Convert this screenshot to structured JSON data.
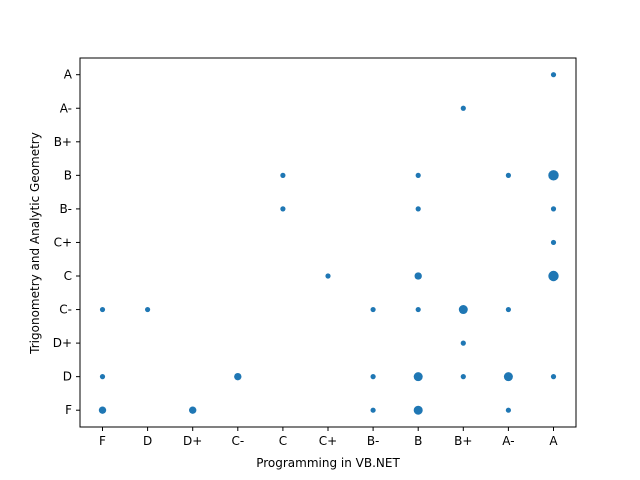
{
  "chart_data": {
    "type": "scatter",
    "xlabel": "Programming in VB.NET",
    "ylabel": "Trigonometry and Analytic Geometry",
    "x_categories": [
      "F",
      "D",
      "D+",
      "C-",
      "C",
      "C+",
      "B-",
      "B",
      "B+",
      "A-",
      "A"
    ],
    "y_categories": [
      "F",
      "D",
      "D+",
      "C-",
      "C",
      "C+",
      "B-",
      "B",
      "B+",
      "A-",
      "A"
    ],
    "grid": false,
    "legend": "none",
    "color": "#1f77b4",
    "points": [
      {
        "x": "F",
        "y": "F",
        "count": 2
      },
      {
        "x": "F",
        "y": "D",
        "count": 1
      },
      {
        "x": "F",
        "y": "C-",
        "count": 1
      },
      {
        "x": "D",
        "y": "C-",
        "count": 1
      },
      {
        "x": "D+",
        "y": "F",
        "count": 2
      },
      {
        "x": "C-",
        "y": "D",
        "count": 2
      },
      {
        "x": "C",
        "y": "B-",
        "count": 1
      },
      {
        "x": "C",
        "y": "B",
        "count": 1
      },
      {
        "x": "C+",
        "y": "C",
        "count": 1
      },
      {
        "x": "B-",
        "y": "F",
        "count": 1
      },
      {
        "x": "B-",
        "y": "D",
        "count": 1
      },
      {
        "x": "B-",
        "y": "C-",
        "count": 1
      },
      {
        "x": "B",
        "y": "F",
        "count": 3
      },
      {
        "x": "B",
        "y": "D",
        "count": 3
      },
      {
        "x": "B",
        "y": "C-",
        "count": 1
      },
      {
        "x": "B",
        "y": "C",
        "count": 2
      },
      {
        "x": "B",
        "y": "B-",
        "count": 1
      },
      {
        "x": "B",
        "y": "B",
        "count": 1
      },
      {
        "x": "B+",
        "y": "D",
        "count": 1
      },
      {
        "x": "B+",
        "y": "D+",
        "count": 1
      },
      {
        "x": "B+",
        "y": "C-",
        "count": 3
      },
      {
        "x": "B+",
        "y": "A-",
        "count": 1
      },
      {
        "x": "A-",
        "y": "F",
        "count": 1
      },
      {
        "x": "A-",
        "y": "D",
        "count": 3
      },
      {
        "x": "A-",
        "y": "C-",
        "count": 1
      },
      {
        "x": "A-",
        "y": "B",
        "count": 1
      },
      {
        "x": "A",
        "y": "D",
        "count": 1
      },
      {
        "x": "A",
        "y": "C",
        "count": 4
      },
      {
        "x": "A",
        "y": "C+",
        "count": 1
      },
      {
        "x": "A",
        "y": "B-",
        "count": 1
      },
      {
        "x": "A",
        "y": "B",
        "count": 4
      },
      {
        "x": "A",
        "y": "A",
        "count": 1
      }
    ]
  }
}
